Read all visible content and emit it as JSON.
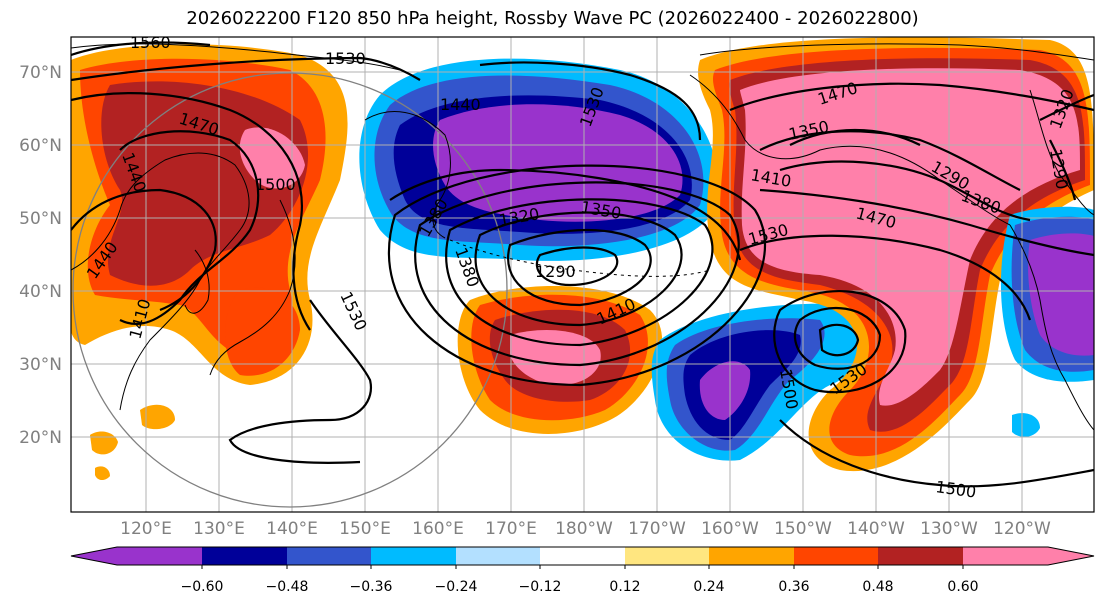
{
  "title": "2026022200 F120 850 hPa height, Rossby Wave PC (2026022400 - 2026022800)",
  "lat_labels": [
    "70°N",
    "60°N",
    "50°N",
    "40°N",
    "30°N",
    "20°N"
  ],
  "lon_labels": [
    "120°E",
    "130°E",
    "140°E",
    "150°E",
    "160°E",
    "170°E",
    "180°W",
    "170°W",
    "160°W",
    "150°W",
    "140°W",
    "130°W",
    "120°W"
  ],
  "colorbar": {
    "colors": [
      "#9933cc",
      "#000099",
      "#3355cc",
      "#00bbff",
      "#b3e0ff",
      "#ffffff",
      "#ffe680",
      "#ffa500",
      "#ff4500",
      "#b22222",
      "#ff80aa"
    ],
    "tick_labels": [
      "−0.60",
      "−0.48",
      "−0.36",
      "−0.24",
      "−0.12",
      "0.12",
      "0.24",
      "0.36",
      "0.48",
      "0.60"
    ]
  },
  "contour_labels": [
    "1560",
    "1530",
    "1470",
    "1440",
    "1440",
    "1410",
    "1530",
    "1500",
    "1350",
    "1320",
    "1290",
    "1380",
    "1470",
    "1440",
    "1410",
    "1530",
    "1530",
    "1410",
    "1380",
    "1290",
    "1320",
    "1290",
    "1350",
    "1470",
    "1380",
    "1500",
    "1500",
    "1530"
  ]
}
